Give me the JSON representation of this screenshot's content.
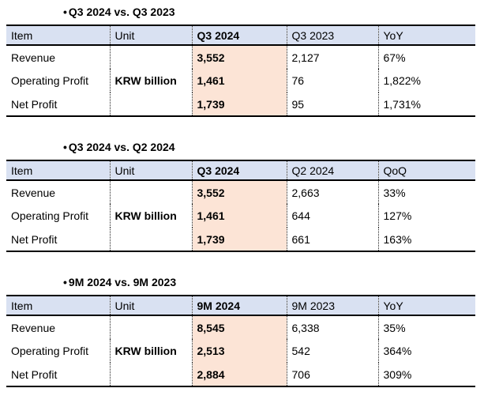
{
  "colors": {
    "header_bg": "#D9E1F2",
    "highlight_bg": "#FCE4D6",
    "border": "#000000"
  },
  "tables": [
    {
      "bullet": "•",
      "title": "Q3 2024 vs. Q3 2023",
      "columns": [
        "Item",
        "Unit",
        "Q3 2024",
        "Q3 2023",
        "YoY"
      ],
      "unit": "KRW billion",
      "rows": [
        {
          "item": "Revenue",
          "current": "3,552",
          "prior": "2,127",
          "change": "67%"
        },
        {
          "item": "Operating Profit",
          "current": "1,461",
          "prior": "76",
          "change": "1,822%"
        },
        {
          "item": "Net Profit",
          "current": "1,739",
          "prior": "95",
          "change": "1,731%"
        }
      ]
    },
    {
      "bullet": "•",
      "title": "Q3 2024 vs. Q2 2024",
      "columns": [
        "Item",
        "Unit",
        "Q3 2024",
        "Q2 2024",
        "QoQ"
      ],
      "unit": "KRW billion",
      "rows": [
        {
          "item": "Revenue",
          "current": "3,552",
          "prior": "2,663",
          "change": "33%"
        },
        {
          "item": "Operating Profit",
          "current": "1,461",
          "prior": "644",
          "change": "127%"
        },
        {
          "item": "Net Profit",
          "current": "1,739",
          "prior": "661",
          "change": "163%"
        }
      ]
    },
    {
      "bullet": "•",
      "title": "9M 2024 vs. 9M 2023",
      "columns": [
        "Item",
        "Unit",
        "9M 2024",
        "9M 2023",
        "YoY"
      ],
      "unit": "KRW billion",
      "rows": [
        {
          "item": "Revenue",
          "current": "8,545",
          "prior": "6,338",
          "change": "35%"
        },
        {
          "item": "Operating Profit",
          "current": "2,513",
          "prior": "542",
          "change": "364%"
        },
        {
          "item": "Net Profit",
          "current": "2,884",
          "prior": "706",
          "change": "309%"
        }
      ]
    }
  ]
}
